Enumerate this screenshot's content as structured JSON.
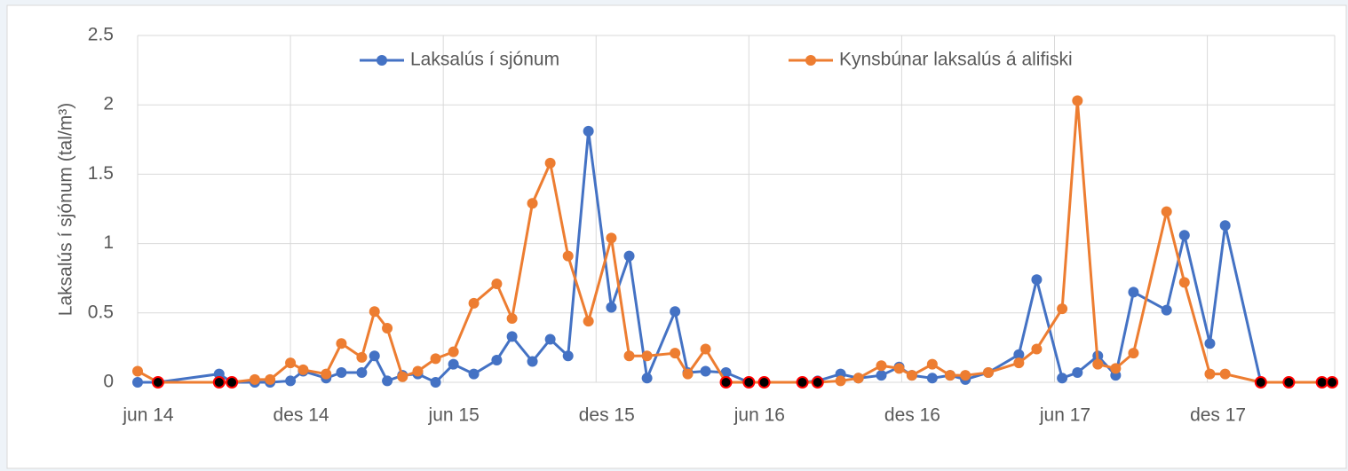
{
  "chart_data": {
    "type": "line",
    "y_label": "Laksalús í sjónum (tal/m³)",
    "x": [
      0,
      0.8,
      3.2,
      3.7,
      4.6,
      5.2,
      6.0,
      6.5,
      7.4,
      8.0,
      8.8,
      9.3,
      9.8,
      10.4,
      11.0,
      11.7,
      12.4,
      13.2,
      14.1,
      14.7,
      15.5,
      16.2,
      16.9,
      17.7,
      18.6,
      19.3,
      20.0,
      21.1,
      21.6,
      22.3,
      23.1,
      24.0,
      24.6,
      26.1,
      26.7,
      27.6,
      28.3,
      29.2,
      29.9,
      30.4,
      31.2,
      31.9,
      32.5,
      33.4,
      34.6,
      35.3,
      36.3,
      36.9,
      37.7,
      38.4,
      39.1,
      40.4,
      41.1,
      42.1,
      42.7,
      44.1,
      45.2,
      46.5,
      46.9
    ],
    "series": [
      {
        "name": "Laksalús í sjónum",
        "color": "#4472c4",
        "values": [
          0,
          0,
          0.06,
          0,
          0,
          0,
          0.01,
          0.08,
          0.03,
          0.07,
          0.07,
          0.19,
          0.01,
          0.05,
          0.06,
          0,
          0.13,
          0.06,
          0.16,
          0.33,
          0.15,
          0.31,
          0.19,
          1.81,
          0.54,
          0.91,
          0.03,
          0.51,
          0.07,
          0.08,
          0.07,
          0,
          0,
          0,
          0.01,
          0.06,
          0.03,
          0.05,
          0.11,
          0.05,
          0.03,
          0.05,
          0.02,
          0.07,
          0.2,
          0.74,
          0.03,
          0.07,
          0.19,
          0.05,
          0.65,
          0.52,
          1.06,
          0.28,
          1.13,
          0,
          0,
          0,
          0
        ]
      },
      {
        "name": "Kynsbúnar laksalús á alifiski",
        "color": "#ed7d31",
        "values": [
          0.08,
          0,
          0,
          0,
          0.02,
          0.02,
          0.14,
          0.09,
          0.06,
          0.28,
          0.18,
          0.51,
          0.39,
          0.04,
          0.08,
          0.17,
          0.22,
          0.57,
          0.71,
          0.46,
          1.29,
          1.58,
          0.91,
          0.44,
          1.04,
          0.19,
          0.19,
          0.21,
          0.06,
          0.24,
          0,
          0,
          0,
          0,
          0,
          0.01,
          0.03,
          0.12,
          0.1,
          0.05,
          0.13,
          0.05,
          0.05,
          0.07,
          0.14,
          0.24,
          0.53,
          2.03,
          0.13,
          0.1,
          0.21,
          1.23,
          0.72,
          0.06,
          0.06,
          0,
          0,
          0,
          0
        ]
      },
      {
        "color": "#000000",
        "marker_edge": "#ff0000",
        "line": false,
        "values": [
          null,
          0,
          0,
          0,
          null,
          null,
          null,
          null,
          null,
          null,
          null,
          null,
          null,
          null,
          null,
          null,
          null,
          null,
          null,
          null,
          null,
          null,
          null,
          null,
          null,
          null,
          null,
          null,
          null,
          null,
          0,
          0,
          0,
          0,
          0,
          null,
          null,
          null,
          null,
          null,
          null,
          null,
          null,
          null,
          null,
          null,
          null,
          null,
          null,
          null,
          null,
          null,
          null,
          null,
          null,
          0,
          0,
          0,
          0
        ]
      }
    ],
    "xlim": [
      0,
      47
    ],
    "xticks": [
      {
        "value": 0,
        "label": "jun 14"
      },
      {
        "value": 6,
        "label": "des 14"
      },
      {
        "value": 12,
        "label": "jun 15"
      },
      {
        "value": 18,
        "label": "des 15"
      },
      {
        "value": 24,
        "label": "jun 16"
      },
      {
        "value": 30,
        "label": "des 16"
      },
      {
        "value": 36,
        "label": "jun 17"
      },
      {
        "value": 42,
        "label": "des 17"
      }
    ],
    "ylim": [
      0,
      2.5
    ],
    "yticks": [
      0,
      0.5,
      1,
      1.5,
      2,
      2.5
    ],
    "grid": true,
    "legend": "top"
  }
}
